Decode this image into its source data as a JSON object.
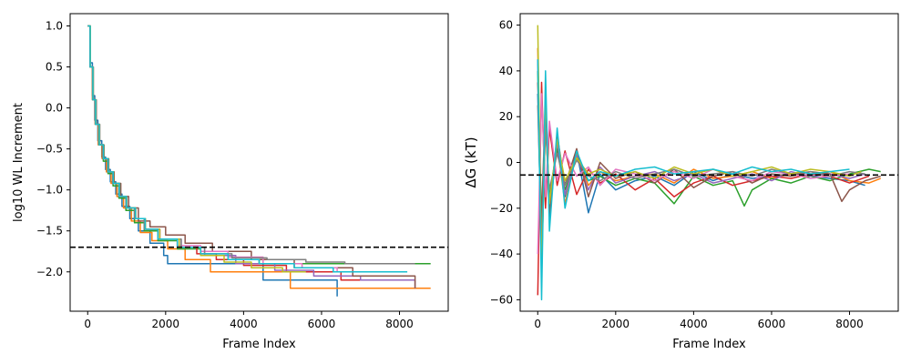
{
  "colors": [
    "#1f77b4",
    "#ff7f0e",
    "#2ca02c",
    "#d62728",
    "#9467bd",
    "#8c564b",
    "#e377c2",
    "#7f7f7f",
    "#bcbd22",
    "#17becf"
  ],
  "chart_data": [
    {
      "type": "line",
      "step": true,
      "title": "",
      "xlabel": "Frame Index",
      "ylabel": "log10 WL Increment",
      "xlim": [
        -450,
        9250
      ],
      "ylim": [
        -2.48,
        1.15
      ],
      "xticks": [
        0,
        2000,
        4000,
        6000,
        8000
      ],
      "xtick_labels": [
        "0",
        "2000",
        "4000",
        "6000",
        "8000"
      ],
      "yticks": [
        1.0,
        0.5,
        0.0,
        -0.5,
        -1.0,
        -1.5,
        -2.0
      ],
      "ytick_labels": [
        "1.0",
        "0.5",
        "0.0",
        "−0.5",
        "−1.0",
        "−1.5",
        "−2.0"
      ],
      "hline": {
        "y": -1.7,
        "style": "dashed",
        "color": "#000000"
      },
      "grid": false,
      "series": [
        {
          "x": [
            0,
            60,
            120,
            180,
            260,
            360,
            460,
            580,
            720,
            880,
            1080,
            1300,
            1600,
            1950,
            2050,
            4500,
            6400
          ],
          "y": [
            1.0,
            0.55,
            0.15,
            -0.15,
            -0.4,
            -0.6,
            -0.75,
            -0.9,
            -1.05,
            -1.2,
            -1.35,
            -1.5,
            -1.65,
            -1.8,
            -1.9,
            -2.1,
            -2.3
          ]
        },
        {
          "x": [
            0,
            60,
            120,
            190,
            270,
            370,
            480,
            600,
            750,
            920,
            1120,
            1350,
            1650,
            2050,
            2500,
            3150,
            5200,
            8800
          ],
          "y": [
            1.0,
            0.5,
            0.1,
            -0.2,
            -0.45,
            -0.62,
            -0.78,
            -0.92,
            -1.08,
            -1.22,
            -1.38,
            -1.52,
            -1.62,
            -1.72,
            -1.85,
            -2.0,
            -2.2,
            -2.2
          ]
        },
        {
          "x": [
            0,
            60,
            130,
            200,
            290,
            400,
            520,
            650,
            800,
            980,
            1200,
            1450,
            1800,
            2300,
            2900,
            3600,
            4400,
            8800
          ],
          "y": [
            1.0,
            0.5,
            0.1,
            -0.2,
            -0.45,
            -0.65,
            -0.8,
            -0.95,
            -1.1,
            -1.25,
            -1.4,
            -1.5,
            -1.62,
            -1.72,
            -1.8,
            -1.85,
            -1.9,
            -1.9
          ]
        },
        {
          "x": [
            0,
            70,
            140,
            210,
            300,
            410,
            530,
            660,
            820,
            1000,
            1230,
            1480,
            1850,
            2300,
            2800,
            3300,
            4000,
            5100,
            6500,
            8400
          ],
          "y": [
            1.0,
            0.5,
            0.1,
            -0.2,
            -0.45,
            -0.62,
            -0.78,
            -0.92,
            -1.08,
            -1.22,
            -1.35,
            -1.48,
            -1.6,
            -1.7,
            -1.78,
            -1.85,
            -1.92,
            -2.0,
            -2.1,
            -2.1
          ]
        },
        {
          "x": [
            0,
            65,
            135,
            205,
            295,
            405,
            525,
            655,
            815,
            995,
            1225,
            1475,
            1850,
            2400,
            3000,
            3800,
            4800,
            5800,
            7000,
            8400
          ],
          "y": [
            1.0,
            0.5,
            0.1,
            -0.2,
            -0.45,
            -0.62,
            -0.78,
            -0.92,
            -1.08,
            -1.22,
            -1.35,
            -1.48,
            -1.6,
            -1.7,
            -1.8,
            -1.9,
            -1.98,
            -2.05,
            -2.1,
            -2.2
          ]
        },
        {
          "x": [
            0,
            70,
            145,
            220,
            310,
            420,
            540,
            680,
            850,
            1050,
            1300,
            1600,
            2000,
            2500,
            3200,
            4200,
            5300,
            6800,
            8400
          ],
          "y": [
            1.0,
            0.5,
            0.1,
            -0.2,
            -0.45,
            -0.62,
            -0.78,
            -0.92,
            -1.08,
            -1.22,
            -1.38,
            -1.45,
            -1.55,
            -1.65,
            -1.75,
            -1.85,
            -1.95,
            -2.05,
            -2.2
          ]
        },
        {
          "x": [
            0,
            65,
            135,
            205,
            295,
            405,
            525,
            655,
            815,
            995,
            1225,
            1475,
            1800,
            2300,
            2900,
            3600,
            4500,
            5500,
            6400
          ],
          "y": [
            1.0,
            0.5,
            0.1,
            -0.2,
            -0.45,
            -0.62,
            -0.78,
            -0.92,
            -1.08,
            -1.22,
            -1.35,
            -1.48,
            -1.6,
            -1.68,
            -1.75,
            -1.82,
            -1.9,
            -1.95,
            -2.0
          ]
        },
        {
          "x": [
            0,
            60,
            125,
            195,
            285,
            390,
            510,
            640,
            800,
            980,
            1200,
            1450,
            1800,
            2400,
            3000,
            3700,
            4600,
            5600,
            6600,
            8400
          ],
          "y": [
            1.0,
            0.5,
            0.1,
            -0.2,
            -0.45,
            -0.62,
            -0.78,
            -0.92,
            -1.08,
            -1.22,
            -1.35,
            -1.48,
            -1.6,
            -1.7,
            -1.78,
            -1.83,
            -1.85,
            -1.88,
            -1.9,
            -1.9
          ]
        },
        {
          "x": [
            0,
            70,
            140,
            210,
            300,
            410,
            530,
            660,
            820,
            1000,
            1230,
            1480,
            1850,
            2350,
            2900,
            3500,
            4200,
            5000,
            5600
          ],
          "y": [
            1.0,
            0.5,
            0.1,
            -0.2,
            -0.45,
            -0.62,
            -0.78,
            -0.92,
            -1.08,
            -1.22,
            -1.35,
            -1.48,
            -1.6,
            -1.7,
            -1.8,
            -1.88,
            -1.95,
            -2.0,
            -2.0
          ]
        },
        {
          "x": [
            0,
            65,
            135,
            205,
            295,
            405,
            525,
            655,
            815,
            995,
            1225,
            1475,
            1800,
            2300,
            2900,
            3600,
            4400,
            5300,
            6300,
            7400,
            8200
          ],
          "y": [
            1.0,
            0.5,
            0.1,
            -0.2,
            -0.45,
            -0.62,
            -0.78,
            -0.92,
            -1.08,
            -1.22,
            -1.35,
            -1.48,
            -1.6,
            -1.7,
            -1.78,
            -1.85,
            -1.9,
            -1.95,
            -2.0,
            -2.0,
            -2.0
          ]
        }
      ]
    },
    {
      "type": "line",
      "title": "",
      "xlabel": "Frame Index",
      "ylabel": "ΔG (kT)",
      "xlim": [
        -450,
        9250
      ],
      "ylim": [
        -65,
        65
      ],
      "xticks": [
        0,
        2000,
        4000,
        6000,
        8000
      ],
      "xtick_labels": [
        "0",
        "2000",
        "4000",
        "6000",
        "8000"
      ],
      "yticks": [
        60,
        40,
        20,
        0,
        -20,
        -40,
        -60
      ],
      "ytick_labels": [
        "60",
        "40",
        "20",
        "0",
        "−20",
        "−40",
        "−60"
      ],
      "hline": {
        "y": -5.5,
        "style": "dashed",
        "color": "#000000"
      },
      "grid": false,
      "series": [
        {
          "x": [
            0,
            100,
            200,
            300,
            500,
            700,
            1000,
            1300,
            1600,
            2000,
            2500,
            3000,
            3500,
            4000,
            4500,
            5000,
            5500,
            6000,
            6500,
            7000,
            7500,
            8000,
            8400
          ],
          "y": [
            30,
            -40,
            25,
            -25,
            10,
            -15,
            5,
            -22,
            -5,
            -12,
            -8,
            -6,
            -10,
            -4,
            -8,
            -5,
            -7,
            -6,
            -5,
            -6,
            -7,
            -8,
            -10
          ]
        },
        {
          "x": [
            0,
            100,
            200,
            300,
            500,
            700,
            1000,
            1300,
            1600,
            2000,
            2500,
            3000,
            3500,
            4000,
            4500,
            5000,
            5500,
            6000,
            6500,
            7000,
            7500,
            8000,
            8500,
            8800
          ],
          "y": [
            50,
            -35,
            20,
            -20,
            8,
            -18,
            4,
            -10,
            -4,
            -8,
            -6,
            -5,
            -9,
            -3,
            -7,
            -6,
            -4,
            -7,
            -5,
            -6,
            -4,
            -8,
            -9,
            -7
          ]
        },
        {
          "x": [
            0,
            100,
            200,
            300,
            500,
            700,
            1000,
            1300,
            1600,
            2000,
            2500,
            3000,
            3500,
            4000,
            4500,
            5000,
            5300,
            5500,
            6000,
            6500,
            7000,
            7500,
            8000,
            8500,
            8800
          ],
          "y": [
            40,
            -45,
            18,
            -15,
            6,
            -12,
            2,
            -8,
            -6,
            -10,
            -7,
            -9,
            -18,
            -6,
            -10,
            -8,
            -19,
            -12,
            -7,
            -9,
            -6,
            -8,
            -5,
            -3,
            -4
          ]
        },
        {
          "x": [
            0,
            100,
            200,
            300,
            500,
            700,
            1000,
            1300,
            1600,
            2000,
            2500,
            3000,
            3500,
            4000,
            4500,
            5000,
            5500,
            6000,
            6500,
            7000,
            7500,
            8000,
            8500
          ],
          "y": [
            -58,
            35,
            -20,
            15,
            -10,
            5,
            -14,
            -3,
            -9,
            -5,
            -12,
            -7,
            -15,
            -9,
            -6,
            -10,
            -8,
            -6,
            -7,
            -5,
            -6,
            -9,
            -6
          ]
        },
        {
          "x": [
            0,
            100,
            200,
            300,
            500,
            700,
            1000,
            1300,
            1600,
            2000,
            2500,
            3000,
            3500,
            4000,
            4500,
            5000,
            5500,
            6000,
            6500,
            7000,
            7500,
            8000,
            8400
          ],
          "y": [
            45,
            -30,
            22,
            -18,
            9,
            -14,
            3,
            -12,
            -2,
            -9,
            -6,
            -4,
            -8,
            -5,
            -9,
            -7,
            -5,
            -8,
            -4,
            -6,
            -5,
            -7,
            -5
          ]
        },
        {
          "x": [
            0,
            100,
            200,
            300,
            500,
            700,
            1000,
            1300,
            1600,
            2000,
            2500,
            3000,
            3500,
            4000,
            4500,
            5000,
            5500,
            6000,
            6500,
            7000,
            7500,
            7800,
            8000,
            8400,
            8800
          ],
          "y": [
            35,
            -25,
            28,
            -22,
            12,
            -10,
            6,
            -15,
            0,
            -7,
            -4,
            -9,
            -3,
            -11,
            -6,
            -4,
            -9,
            -5,
            -6,
            -4,
            -5,
            -17,
            -12,
            -8,
            -6
          ]
        },
        {
          "x": [
            0,
            100,
            200,
            300,
            500,
            700,
            1000,
            1300,
            1600,
            2000,
            2500,
            3000,
            3500,
            4000,
            4500,
            5000,
            5500,
            6000,
            6500,
            7000,
            7500,
            8000
          ],
          "y": [
            -40,
            30,
            -15,
            18,
            -8,
            4,
            -6,
            -2,
            -10,
            -3,
            -5,
            -8,
            -4,
            -7,
            -3,
            -6,
            -8,
            -4,
            -5,
            -7,
            -6,
            -5
          ]
        },
        {
          "x": [
            0,
            100,
            200,
            300,
            500,
            700,
            1000,
            1300,
            1600,
            2000,
            2500,
            3000,
            3500,
            4000,
            4500,
            5000,
            5500,
            6000,
            6500,
            7000,
            7500,
            8000,
            8400
          ],
          "y": [
            25,
            -35,
            15,
            -12,
            4,
            -10,
            1,
            -6,
            -8,
            -4,
            -7,
            -5,
            -3,
            -6,
            -5,
            -4,
            -6,
            -3,
            -5,
            -4,
            -6,
            -4,
            -5
          ]
        },
        {
          "x": [
            0,
            100,
            200,
            300,
            500,
            700,
            1000,
            1300,
            1600,
            2000,
            2500,
            3000,
            3500,
            4000,
            4500,
            5000,
            5500,
            6000,
            6500,
            7000,
            7500,
            8000,
            8300
          ],
          "y": [
            60,
            -50,
            30,
            -18,
            10,
            -8,
            2,
            -5,
            -3,
            -6,
            -4,
            -7,
            -2,
            -5,
            -3,
            -6,
            -4,
            -2,
            -5,
            -3,
            -4,
            -6,
            -4
          ]
        },
        {
          "x": [
            0,
            100,
            200,
            300,
            500,
            700,
            1000,
            1300,
            1600,
            2000,
            2500,
            3000,
            3500,
            4000,
            4500,
            5000,
            5500,
            6000,
            6500,
            7000,
            7500,
            8000
          ],
          "y": [
            45,
            -60,
            40,
            -30,
            15,
            -20,
            5,
            -8,
            -4,
            -6,
            -3,
            -2,
            -5,
            -4,
            -3,
            -5,
            -2,
            -4,
            -3,
            -5,
            -4,
            -3
          ]
        }
      ]
    }
  ]
}
